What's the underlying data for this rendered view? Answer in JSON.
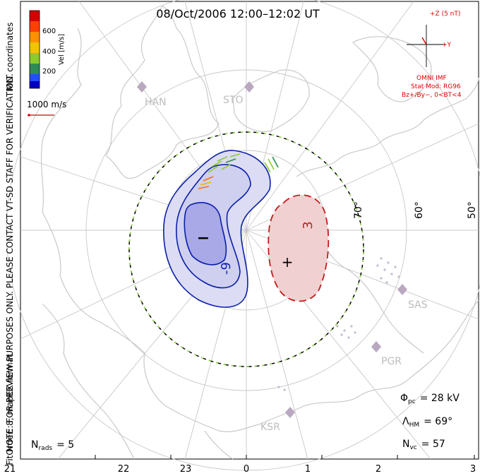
{
  "title": "08/Oct/2006 12:00–12:02 UT",
  "coordinate_label": "MLT coordinates",
  "colorbar": {
    "label": "Vel [m/s]",
    "ticks": [
      "600",
      "400",
      "200"
    ],
    "colors": [
      "#d50000",
      "#ff7000",
      "#f2b400",
      "#8ccc2a",
      "#2e8b57",
      "#1f4fff",
      "#0000c8"
    ]
  },
  "velocity_scale_label": "1000 m/s",
  "imf_clock": {
    "bz_label": "+Z (5 nT)",
    "by_label": "+Y",
    "source": "OMNI IMF",
    "model": "Stat Mod: RG96",
    "bin": "Bz+/By−, 0<BT<4"
  },
  "note": "NOTE: FOR PREVIEW PURPOSES ONLY. PLEASE CONTACT VT-SD STAFF FOR VERIFICATION.",
  "fit": "FitOrder: 8, mapEX format",
  "nrads": {
    "symbol": "N",
    "sub": "rads",
    "value": "= 5"
  },
  "stats": {
    "phi_pc": {
      "symbol": "Φ",
      "sub": "pc",
      "value": "= 28 kV"
    },
    "lambda_hm": {
      "symbol": "Λ",
      "sub": "HM",
      "value": "= 69°"
    },
    "n_vc": {
      "symbol": "N",
      "sub": "vc",
      "value": "= 57"
    }
  },
  "latitude_labels": [
    "70°",
    "60°",
    "50°"
  ],
  "mlt_ticks": [
    "21",
    "22",
    "23",
    "0",
    "1",
    "2",
    "3"
  ],
  "radars": [
    "HAN",
    "STO",
    "SAS",
    "PGR",
    "KSR"
  ],
  "cells": {
    "dusk": {
      "sign": "−",
      "label": "-9",
      "color": "#0a1fa8",
      "fill": "#a9a9e8"
    },
    "dawn": {
      "sign": "+",
      "label": "3",
      "color": "#c21d1d",
      "fill": "#f0c8c8"
    }
  }
}
